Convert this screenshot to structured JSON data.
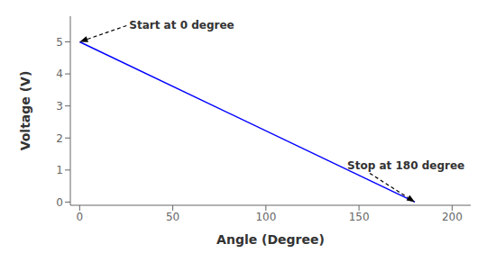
{
  "chart_data": {
    "type": "line",
    "x": [
      0,
      180
    ],
    "values": [
      5,
      0
    ],
    "color": "blue",
    "xlabel": "Angle (Degree)",
    "ylabel": "Voltage (V)",
    "xlim": [
      -5,
      210
    ],
    "ylim": [
      -0.1,
      5.8
    ],
    "xticks": [
      0,
      50,
      100,
      150,
      200
    ],
    "yticks": [
      0,
      1,
      2,
      3,
      4,
      5
    ],
    "grid": false,
    "annotations": [
      {
        "text": "Start at 0 degree",
        "x": 0,
        "y": 5
      },
      {
        "text": "Stop at 180 degree",
        "x": 180,
        "y": 0
      }
    ]
  }
}
